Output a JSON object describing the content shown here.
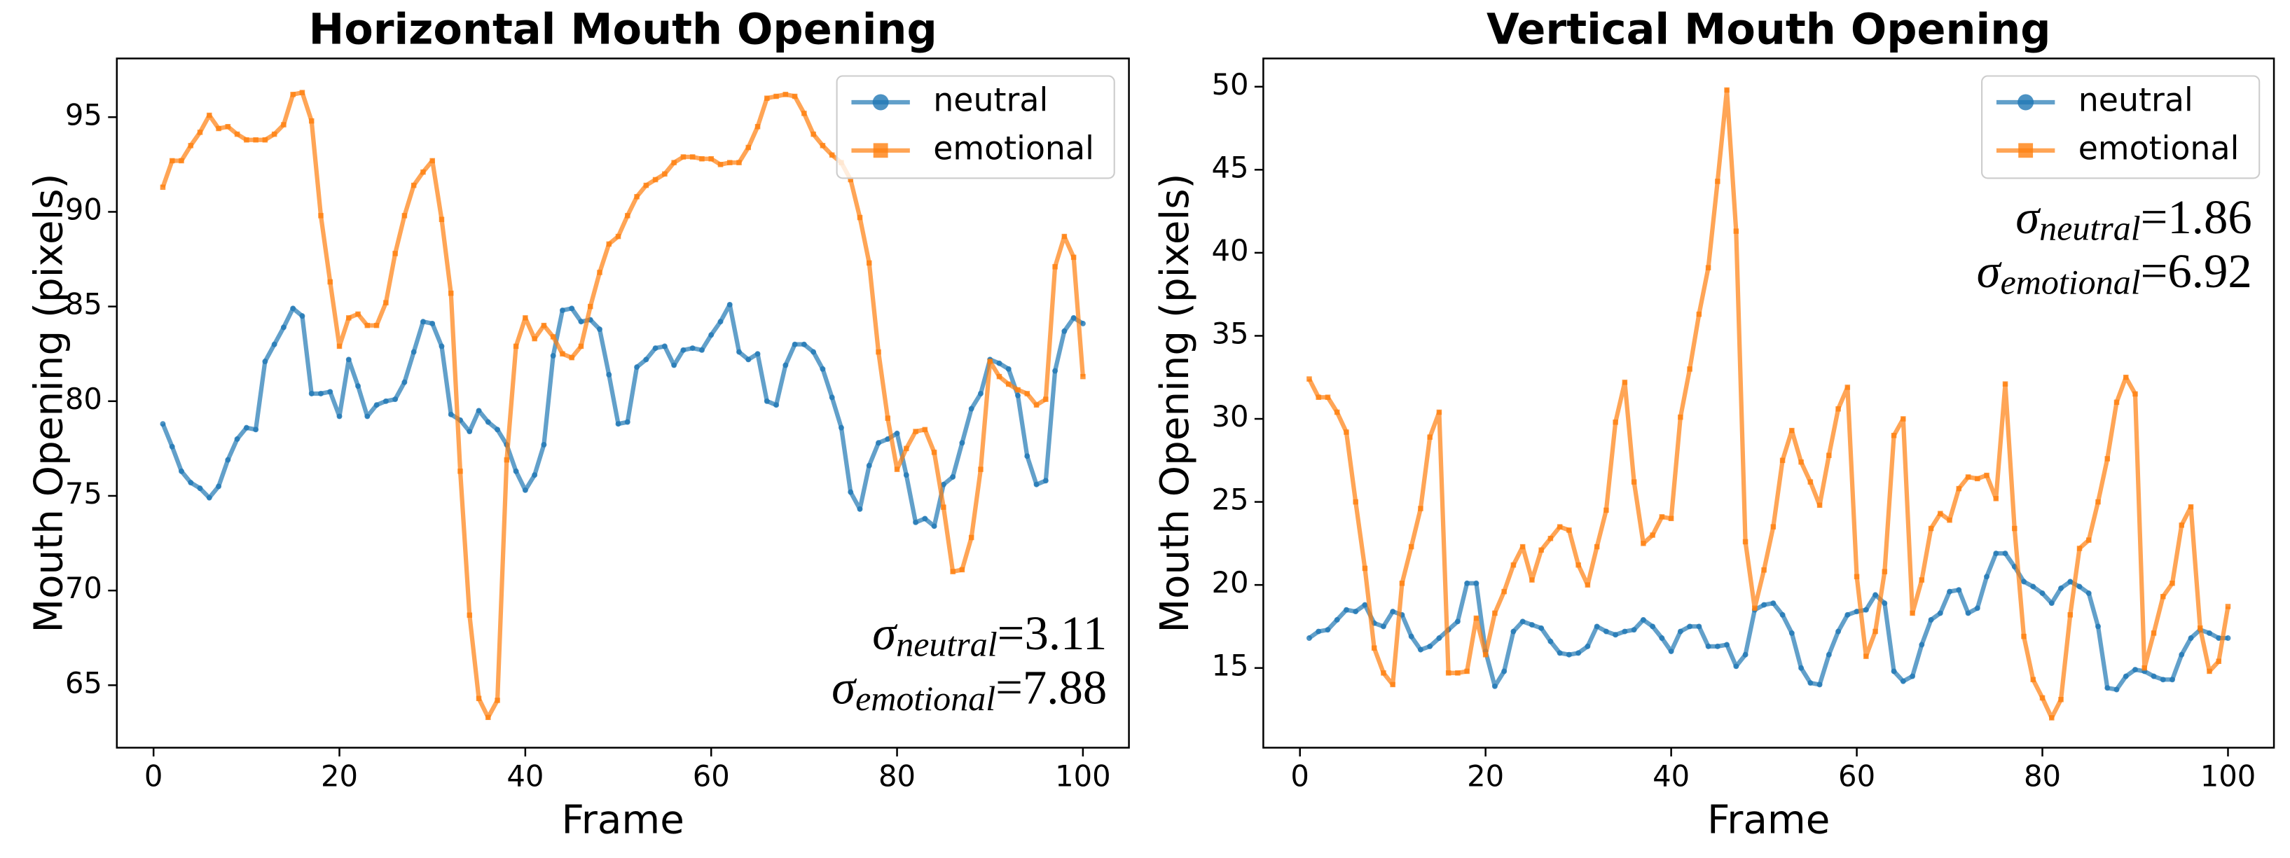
{
  "chart_data": [
    {
      "type": "line",
      "title": "Horizontal Mouth Opening",
      "x_label": "Frame",
      "y_label": "Mouth Opening (pixels)",
      "x": [
        1,
        2,
        3,
        4,
        5,
        6,
        7,
        8,
        9,
        10,
        11,
        12,
        13,
        14,
        15,
        16,
        17,
        18,
        19,
        20,
        21,
        22,
        23,
        24,
        25,
        26,
        27,
        28,
        29,
        30,
        31,
        32,
        33,
        34,
        35,
        36,
        37,
        38,
        39,
        40,
        41,
        42,
        43,
        44,
        45,
        46,
        47,
        48,
        49,
        50,
        51,
        52,
        53,
        54,
        55,
        56,
        57,
        58,
        59,
        60,
        61,
        62,
        63,
        64,
        65,
        66,
        67,
        68,
        69,
        70,
        71,
        72,
        73,
        74,
        75,
        76,
        77,
        78,
        79,
        80,
        81,
        82,
        83,
        84,
        85,
        86,
        87,
        88,
        89,
        90,
        91,
        92,
        93,
        94,
        95,
        96,
        97,
        98,
        99,
        100
      ],
      "series": [
        {
          "name": "neutral",
          "color": "#1f77b4",
          "marker": "circle",
          "values": [
            78.8,
            77.6,
            76.3,
            75.7,
            75.4,
            74.9,
            75.5,
            76.9,
            78.0,
            78.6,
            78.5,
            82.1,
            83.0,
            83.9,
            84.9,
            84.5,
            80.4,
            80.4,
            80.5,
            79.2,
            82.2,
            80.8,
            79.2,
            79.8,
            80.0,
            80.1,
            81.0,
            82.6,
            84.2,
            84.1,
            82.9,
            79.3,
            79.0,
            78.4,
            79.5,
            78.9,
            78.5,
            77.7,
            76.3,
            75.3,
            76.1,
            77.7,
            82.4,
            84.8,
            84.9,
            84.2,
            84.3,
            83.8,
            81.4,
            78.8,
            78.9,
            81.8,
            82.2,
            82.8,
            82.9,
            81.9,
            82.7,
            82.8,
            82.7,
            83.5,
            84.2,
            85.1,
            82.6,
            82.2,
            82.5,
            80.0,
            79.8,
            81.9,
            83.0,
            83.0,
            82.6,
            81.7,
            80.2,
            78.6,
            75.2,
            74.3,
            76.6,
            77.8,
            78.0,
            78.3,
            76.1,
            73.6,
            73.8,
            73.4,
            75.6,
            76.0,
            77.8,
            79.6,
            80.4,
            82.2,
            82.0,
            81.7,
            80.3,
            77.1,
            75.6,
            75.8,
            81.6,
            83.7,
            84.4,
            84.1
          ]
        },
        {
          "name": "emotional",
          "color": "#ff7f0e",
          "marker": "square",
          "values": [
            91.3,
            92.7,
            92.7,
            93.5,
            94.2,
            95.1,
            94.4,
            94.5,
            94.1,
            93.8,
            93.8,
            93.8,
            94.1,
            94.6,
            96.2,
            96.3,
            94.8,
            89.8,
            86.3,
            82.9,
            84.4,
            84.6,
            84.0,
            84.0,
            85.2,
            87.8,
            89.8,
            91.4,
            92.1,
            92.7,
            89.6,
            85.7,
            76.3,
            68.7,
            64.3,
            63.3,
            64.2,
            76.9,
            82.9,
            84.4,
            83.3,
            84.0,
            83.4,
            82.5,
            82.3,
            82.9,
            85.0,
            86.8,
            88.3,
            88.7,
            89.8,
            90.8,
            91.4,
            91.7,
            92.0,
            92.6,
            92.9,
            92.9,
            92.8,
            92.8,
            92.5,
            92.6,
            92.6,
            93.4,
            94.5,
            96.0,
            96.1,
            96.2,
            96.1,
            95.2,
            94.1,
            93.5,
            93.0,
            92.6,
            91.7,
            89.7,
            87.3,
            82.6,
            79.1,
            76.4,
            77.5,
            78.4,
            78.5,
            77.3,
            74.4,
            71.0,
            71.1,
            72.8,
            76.4,
            82.1,
            81.3,
            80.9,
            80.6,
            80.4,
            79.8,
            80.1,
            87.1,
            88.7,
            87.6,
            81.3
          ]
        }
      ],
      "xlim": [
        -3.95,
        104.95
      ],
      "xticks": [
        0,
        20,
        40,
        60,
        80,
        100
      ],
      "ylim": [
        61.7,
        98.1
      ],
      "yticks": [
        65,
        70,
        75,
        80,
        85,
        90,
        95
      ],
      "legend": "upper right",
      "annotation_loc": "lower right",
      "annotations": [
        {
          "symbol": "σ",
          "sub": "neutral",
          "rest": "=3.11"
        },
        {
          "symbol": "σ",
          "sub": "emotional",
          "rest": "=7.88"
        }
      ]
    },
    {
      "type": "line",
      "title": "Vertical Mouth Opening",
      "x_label": "Frame",
      "y_label": "Mouth Opening (pixels)",
      "x": [
        1,
        2,
        3,
        4,
        5,
        6,
        7,
        8,
        9,
        10,
        11,
        12,
        13,
        14,
        15,
        16,
        17,
        18,
        19,
        20,
        21,
        22,
        23,
        24,
        25,
        26,
        27,
        28,
        29,
        30,
        31,
        32,
        33,
        34,
        35,
        36,
        37,
        38,
        39,
        40,
        41,
        42,
        43,
        44,
        45,
        46,
        47,
        48,
        49,
        50,
        51,
        52,
        53,
        54,
        55,
        56,
        57,
        58,
        59,
        60,
        61,
        62,
        63,
        64,
        65,
        66,
        67,
        68,
        69,
        70,
        71,
        72,
        73,
        74,
        75,
        76,
        77,
        78,
        79,
        80,
        81,
        82,
        83,
        84,
        85,
        86,
        87,
        88,
        89,
        90,
        91,
        92,
        93,
        94,
        95,
        96,
        97,
        98,
        99,
        100
      ],
      "series": [
        {
          "name": "neutral",
          "color": "#1f77b4",
          "marker": "circle",
          "values": [
            16.8,
            17.2,
            17.3,
            17.9,
            18.5,
            18.4,
            18.8,
            17.7,
            17.5,
            18.4,
            18.2,
            16.9,
            16.1,
            16.3,
            16.8,
            17.3,
            17.8,
            20.1,
            20.1,
            16.0,
            13.9,
            14.8,
            17.2,
            17.8,
            17.6,
            17.4,
            16.6,
            15.9,
            15.8,
            15.9,
            16.3,
            17.5,
            17.2,
            17.0,
            17.2,
            17.3,
            17.9,
            17.5,
            16.8,
            16.0,
            17.2,
            17.5,
            17.5,
            16.3,
            16.3,
            16.4,
            15.1,
            15.8,
            18.5,
            18.8,
            18.9,
            18.2,
            17.1,
            15.0,
            14.1,
            14.0,
            15.8,
            17.2,
            18.2,
            18.4,
            18.5,
            19.4,
            18.9,
            14.8,
            14.2,
            14.5,
            16.4,
            17.9,
            18.3,
            19.6,
            19.7,
            18.3,
            18.6,
            20.5,
            21.9,
            21.9,
            21.1,
            20.2,
            19.9,
            19.5,
            18.9,
            19.8,
            20.2,
            19.9,
            19.5,
            17.5,
            13.8,
            13.7,
            14.5,
            14.9,
            14.8,
            14.5,
            14.3,
            14.3,
            15.8,
            16.8,
            17.3,
            17.1,
            16.8,
            16.8
          ]
        },
        {
          "name": "emotional",
          "color": "#ff7f0e",
          "marker": "square",
          "values": [
            32.4,
            31.3,
            31.3,
            30.4,
            29.2,
            25.0,
            21.0,
            16.2,
            14.7,
            14.0,
            20.1,
            22.3,
            24.6,
            28.9,
            30.4,
            14.7,
            14.7,
            14.8,
            18.0,
            15.8,
            18.3,
            19.6,
            21.2,
            22.3,
            20.3,
            22.1,
            22.8,
            23.5,
            23.3,
            21.2,
            20.0,
            22.3,
            24.5,
            29.8,
            32.2,
            26.2,
            22.5,
            23.0,
            24.1,
            24.0,
            30.1,
            33.0,
            36.3,
            39.1,
            44.3,
            49.8,
            41.3,
            22.6,
            18.6,
            20.9,
            23.5,
            27.5,
            29.3,
            27.4,
            26.2,
            24.8,
            27.8,
            30.6,
            31.9,
            20.5,
            15.7,
            17.2,
            20.8,
            29.0,
            30.0,
            18.3,
            20.3,
            23.4,
            24.3,
            23.9,
            25.8,
            26.5,
            26.4,
            26.6,
            25.2,
            32.1,
            23.4,
            16.9,
            14.3,
            13.2,
            12.0,
            13.1,
            18.2,
            22.2,
            22.7,
            25.0,
            27.6,
            31.0,
            32.5,
            31.5,
            15.0,
            17.1,
            19.3,
            20.1,
            23.6,
            24.7,
            17.4,
            14.8,
            15.4,
            18.7
          ]
        }
      ],
      "xlim": [
        -3.95,
        104.95
      ],
      "xticks": [
        0,
        20,
        40,
        60,
        80,
        100
      ],
      "ylim": [
        10.2,
        51.7
      ],
      "yticks": [
        15,
        20,
        25,
        30,
        35,
        40,
        45,
        50
      ],
      "legend": "upper right",
      "annotation_loc": "upper right",
      "annotations": [
        {
          "symbol": "σ",
          "sub": "neutral",
          "rest": "=1.86"
        },
        {
          "symbol": "σ",
          "sub": "emotional",
          "rest": "=6.92"
        }
      ]
    }
  ]
}
